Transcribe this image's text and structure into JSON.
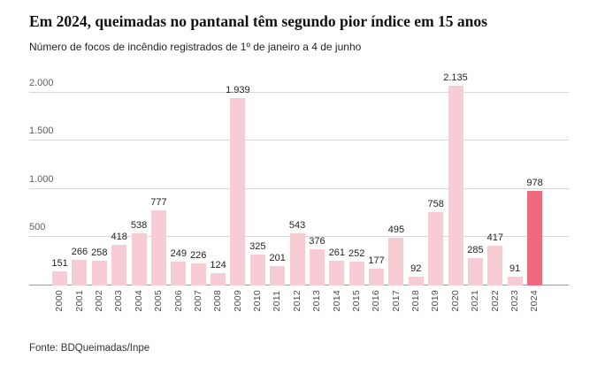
{
  "header": {
    "title": "Em 2024, queimadas no pantanal têm segundo pior índice em 15 anos",
    "subtitle": "Número de focos de incêndio registrados de 1º de janeiro a 4 de junho"
  },
  "footer": {
    "source": "Fonte: BDQueimadas/Inpe"
  },
  "chart_data": {
    "type": "bar",
    "title": "Em 2024, queimadas no pantanal têm segundo pior índice em 15 anos",
    "subtitle": "Número de focos de incêndio registrados de 1º de janeiro a 4 de junho",
    "categories": [
      "2000",
      "2001",
      "2002",
      "2003",
      "2004",
      "2005",
      "2006",
      "2007",
      "2008",
      "2009",
      "2010",
      "2011",
      "2012",
      "2013",
      "2014",
      "2015",
      "2016",
      "2017",
      "2018",
      "2019",
      "2020",
      "2021",
      "2022",
      "2023",
      "2024"
    ],
    "values": [
      151,
      266,
      258,
      418,
      538,
      777,
      249,
      226,
      124,
      1939,
      325,
      201,
      543,
      376,
      261,
      252,
      177,
      495,
      92,
      758,
      2135,
      285,
      417,
      91,
      978
    ],
    "value_labels": [
      "151",
      "266",
      "258",
      "418",
      "538",
      "777",
      "249",
      "226",
      "124",
      "1.939",
      "325",
      "201",
      "543",
      "376",
      "261",
      "252",
      "177",
      "495",
      "92",
      "758",
      "2.135",
      "285",
      "417",
      "91",
      "978"
    ],
    "highlight_index": 24,
    "highlight_category": "2024",
    "yticks": [
      500,
      1000,
      1500,
      2000
    ],
    "ytick_labels": [
      "500",
      "1.000",
      "1.500",
      "2.000"
    ],
    "ylim": [
      0,
      2200
    ],
    "grid": true,
    "legend": false,
    "xlabel": "",
    "ylabel": "",
    "source": "Fonte: BDQueimadas/Inpe",
    "colors": {
      "bar": "#f8ccd4",
      "highlight_bar": "#ee6a7e",
      "gridline": "#d9d9d9",
      "axis_line": "#9c9c9c"
    }
  }
}
